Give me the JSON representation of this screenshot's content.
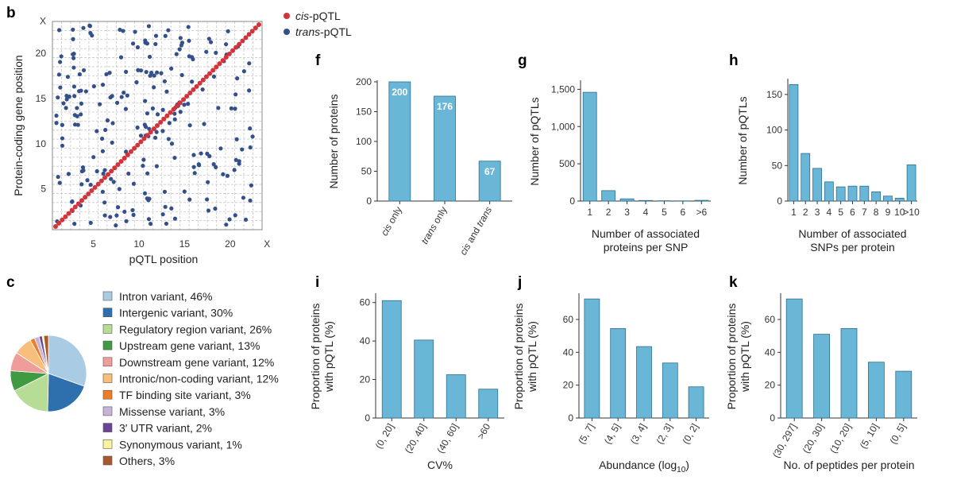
{
  "panel_b": {
    "letter": "b",
    "legend": [
      {
        "name": "cis",
        "suffix": "-pQTL",
        "color": "#d1343b"
      },
      {
        "name": "trans",
        "suffix": "-pQTL",
        "color": "#34508a"
      }
    ],
    "xlabel": "pQTL position",
    "ylabel": "Protein-coding gene position",
    "x_ticks": [
      "5",
      "10",
      "15",
      "20",
      "X"
    ],
    "y_ticks": [
      "5",
      "10",
      "15",
      "20",
      "X"
    ]
  },
  "panel_c": {
    "letter": "c",
    "slices": [
      {
        "label": "Intron variant, 46%",
        "value": 46,
        "color": "#a9cbe3"
      },
      {
        "label": "Intergenic variant, 30%",
        "value": 30,
        "color": "#2e6fae"
      },
      {
        "label": "Regulatory region variant, 26%",
        "value": 26,
        "color": "#b7dc96"
      },
      {
        "label": "Upstream gene variant, 13%",
        "value": 13,
        "color": "#3f9a41"
      },
      {
        "label": "Downstream gene variant, 12%",
        "value": 12,
        "color": "#ee9d9b"
      },
      {
        "label": "Intronic/non-coding variant, 12%",
        "value": 12,
        "color": "#f7be7c"
      },
      {
        "label": "TF binding site variant, 3%",
        "value": 3,
        "color": "#ef7c27"
      },
      {
        "label": "Missense variant, 3%",
        "value": 3,
        "color": "#c6b3d8"
      },
      {
        "label": "3′ UTR variant, 2%",
        "value": 2,
        "color": "#6a4596"
      },
      {
        "label": "Synonymous variant, 1%",
        "value": 1,
        "color": "#f8f39c"
      },
      {
        "label": "Others, 3%",
        "value": 3,
        "color": "#a8592b"
      }
    ]
  },
  "chart_data": [
    {
      "id": "f",
      "letter": "f",
      "type": "bar",
      "categories": [
        "cis only",
        "trans only",
        "cis and trans"
      ],
      "values": [
        200,
        176,
        67
      ],
      "data_labels": [
        "200",
        "176",
        "67"
      ],
      "ylabel": "Number of proteins",
      "xlabel": "",
      "ylim": [
        0,
        200
      ],
      "yticks": [
        0,
        50,
        100,
        150,
        200
      ],
      "ytick_labels": [
        "0",
        "50",
        "100",
        "150",
        "200"
      ],
      "color": "#6ab6d6"
    },
    {
      "id": "g",
      "letter": "g",
      "type": "bar",
      "categories": [
        "1",
        "2",
        "3",
        "4",
        "5",
        "6",
        ">6"
      ],
      "values": [
        1460,
        140,
        30,
        8,
        4,
        3,
        10
      ],
      "ylabel": "Number of pQTLs",
      "xlabel_lines": [
        "Number of associated",
        "proteins per SNP"
      ],
      "ylim": [
        0,
        1600
      ],
      "yticks": [
        0,
        500,
        1000,
        1500
      ],
      "ytick_labels": [
        "0",
        "500",
        "1,000",
        "1,500"
      ],
      "color": "#6ab6d6"
    },
    {
      "id": "h",
      "letter": "h",
      "type": "bar",
      "categories": [
        "1",
        "2",
        "3",
        "4",
        "5",
        "6",
        "7",
        "8",
        "9",
        "10",
        ">10"
      ],
      "values": [
        164,
        67,
        46,
        27,
        20,
        21,
        21,
        13,
        7,
        4,
        51
      ],
      "ylabel": "Number of pQTLs",
      "xlabel_lines": [
        "Number of associated",
        "SNPs per protein"
      ],
      "ylim": [
        0,
        170
      ],
      "yticks": [
        0,
        50,
        100,
        150
      ],
      "ytick_labels": [
        "0",
        "50",
        "100",
        "150"
      ],
      "color": "#6ab6d6"
    },
    {
      "id": "i",
      "letter": "i",
      "type": "bar",
      "categories": [
        "(0, 20]",
        "(20, 40]",
        "(40, 60]",
        ">60"
      ],
      "values": [
        61,
        40.5,
        22.5,
        15
      ],
      "ylabel_lines": [
        "Proportion of proteins",
        "with pQTL (%)"
      ],
      "xlabel": "CV%",
      "ylim": [
        0,
        64
      ],
      "yticks": [
        0,
        20,
        40,
        60
      ],
      "ytick_labels": [
        "0",
        "20",
        "40",
        "60"
      ],
      "color": "#6ab6d6"
    },
    {
      "id": "j",
      "letter": "j",
      "type": "bar",
      "categories": [
        "(5, 7]",
        "(4, 5]",
        "(3, 4]",
        "(2, 3]",
        "(0, 2]"
      ],
      "values": [
        72.5,
        54.5,
        43.5,
        33.5,
        19
      ],
      "ylabel_lines": [
        "Proportion of proteins",
        "with pQTL (%)"
      ],
      "xlabel": "Abundance (log",
      "xlabel_sub": "10",
      "xlabel_end": ")",
      "ylim": [
        0,
        75
      ],
      "yticks": [
        0,
        20,
        40,
        60
      ],
      "ytick_labels": [
        "0",
        "20",
        "40",
        "60"
      ],
      "color": "#6ab6d6"
    },
    {
      "id": "k",
      "letter": "k",
      "type": "bar",
      "categories": [
        "(30, 297]",
        "(20, 30]",
        "(10, 20]",
        "(5, 10]",
        "(0, 5]"
      ],
      "values": [
        72.5,
        51,
        54.5,
        34,
        28.5
      ],
      "ylabel_lines": [
        "Proportion of proteins",
        "with pQTL (%)"
      ],
      "xlabel": "No. of peptides per protein",
      "ylim": [
        0,
        75
      ],
      "yticks": [
        0,
        20,
        40,
        60
      ],
      "ytick_labels": [
        "0",
        "20",
        "40",
        "60"
      ],
      "color": "#6ab6d6"
    }
  ]
}
